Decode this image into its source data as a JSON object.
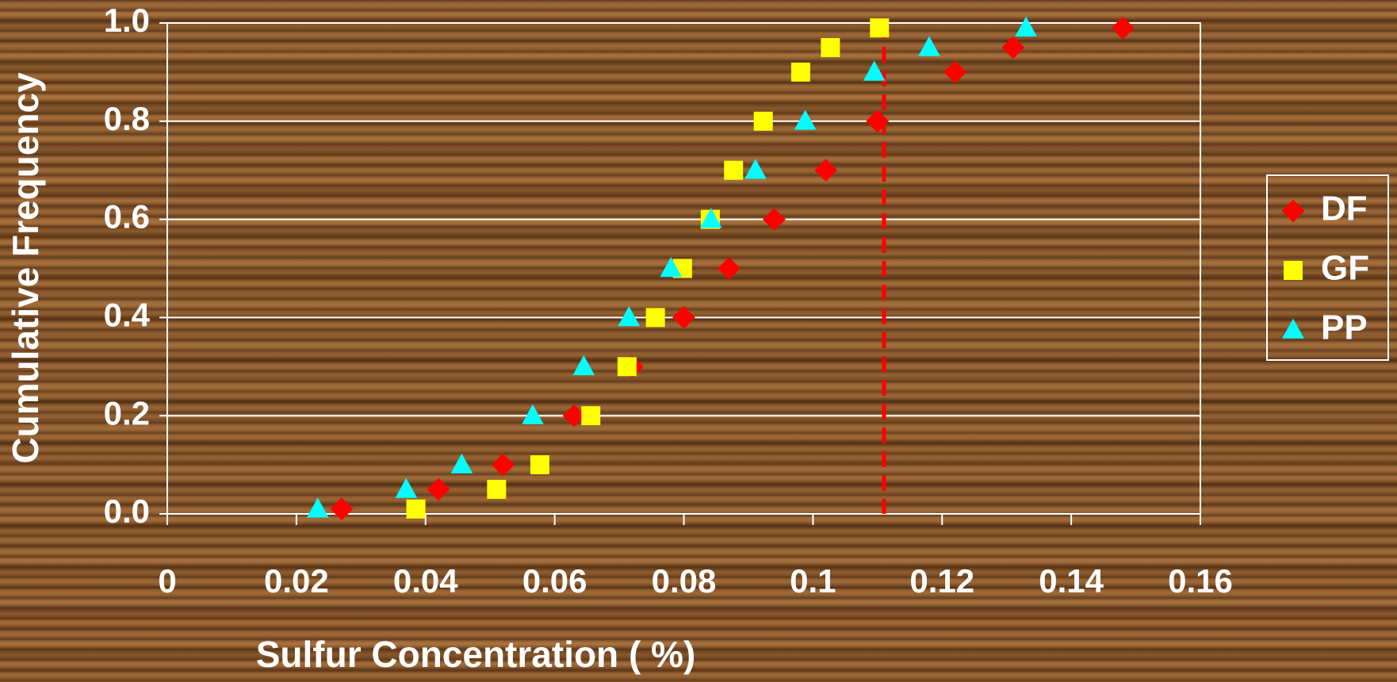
{
  "chart_data": {
    "type": "scatter",
    "x_label": "Sulfur Concentration ( %)",
    "y_label": "Cumulative Frequency",
    "xlim": [
      0,
      0.16
    ],
    "xticks": [
      0,
      0.02,
      0.04,
      0.06,
      0.08,
      0.1,
      0.12,
      0.14,
      0.16
    ],
    "ylim": [
      0,
      1.0
    ],
    "yticks": [
      {
        "value": 0,
        "label": "0.0"
      },
      {
        "value": 0.2,
        "label": "0.2"
      },
      {
        "value": 0.4,
        "label": "0.4"
      },
      {
        "value": 0.6,
        "label": "0.6"
      },
      {
        "value": 0.8,
        "label": "0.8"
      },
      {
        "value": 1.0,
        "label": "1.0"
      }
    ],
    "grid": true,
    "legend": "right",
    "reference_line": {
      "x": 0.111,
      "color": "#ff0000"
    },
    "series": [
      {
        "name": "DF",
        "color": "#ff0000",
        "marker": "diamond",
        "x": [
          0.027,
          0.042,
          0.052,
          0.063,
          0.072,
          0.08,
          0.087,
          0.094,
          0.102,
          0.11,
          0.122,
          0.131,
          0.148
        ],
        "values": [
          0.01,
          0.05,
          0.1,
          0.2,
          0.3,
          0.4,
          0.5,
          0.6,
          0.7,
          0.8,
          0.9,
          0.95,
          0.99
        ]
      },
      {
        "name": "GF",
        "color": "#ffff00",
        "marker": "square",
        "x": [
          0.0385,
          0.051,
          0.0577,
          0.0656,
          0.0712,
          0.0756,
          0.0798,
          0.0841,
          0.0877,
          0.0923,
          0.0981,
          0.1027,
          0.1103
        ],
        "values": [
          0.01,
          0.05,
          0.1,
          0.2,
          0.3,
          0.4,
          0.5,
          0.6,
          0.7,
          0.8,
          0.9,
          0.95,
          0.99
        ]
      },
      {
        "name": "PP",
        "color": "#00ffff",
        "marker": "triangle",
        "x": [
          0.0233,
          0.037,
          0.0456,
          0.0566,
          0.0645,
          0.0715,
          0.078,
          0.0842,
          0.0911,
          0.0988,
          0.1095,
          0.118,
          0.133
        ],
        "values": [
          0.01,
          0.05,
          0.1,
          0.2,
          0.3,
          0.4,
          0.5,
          0.6,
          0.7,
          0.8,
          0.9,
          0.95,
          0.99
        ]
      }
    ]
  }
}
